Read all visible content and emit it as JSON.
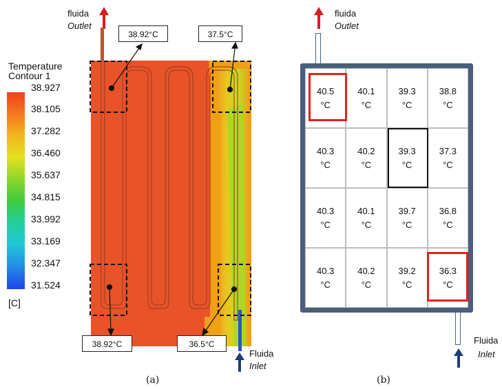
{
  "panel_a": {
    "outlet_label_top": "fluida",
    "outlet_label_bottom": "Outlet",
    "inlet_label_top": "Fluida",
    "inlet_label_bottom": "Inlet",
    "caption": "(a)",
    "legend": {
      "title": "Temperature",
      "subtitle": "Contour 1",
      "values": [
        "38.927",
        "38.105",
        "37.282",
        "36.460",
        "35.637",
        "34.815",
        "33.992",
        "33.169",
        "32.347",
        "31.524"
      ],
      "unit": "[C]"
    },
    "callouts": {
      "top_left": "38.92°C",
      "top_right": "37.5°C",
      "bottom_left": "38.92°C",
      "bottom_right": "36.5°C"
    },
    "colors": {
      "hot": "#e8532a",
      "warm": "#f0a015",
      "cool": "#c8d91f",
      "cold": "#2a56c8"
    }
  },
  "panel_b": {
    "outlet_label_top": "fluida",
    "outlet_label_bottom": "Outlet",
    "inlet_label_top": "Fluida",
    "inlet_label_bottom": "Inlet",
    "caption": "(b)",
    "grid": [
      [
        "40.5\n°C",
        "40.1\n°C",
        "39.3\n°C",
        "38.8\n°C"
      ],
      [
        "40.3\n°C",
        "40.2\n°C",
        "39.3\n°C",
        "37.3\n°C"
      ],
      [
        "40.3\n°C",
        "40.1\n°C",
        "39.7\n°C",
        "36.8\n°C"
      ],
      [
        "40.3\n°C",
        "40.2\n°C",
        "39.2\n°C",
        "36.3\n°C"
      ]
    ],
    "colors": {
      "frame": "#4a5e7d",
      "highlight": "#e02020",
      "arrow_outlet": "#d62020",
      "arrow_inlet": "#1f3c78"
    }
  }
}
